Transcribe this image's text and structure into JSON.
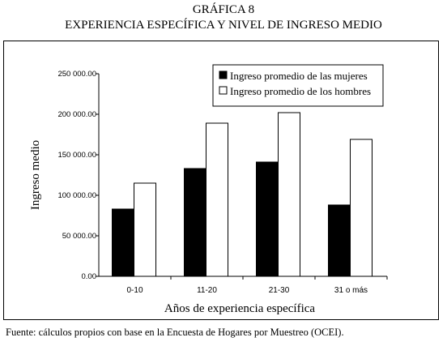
{
  "figure": {
    "title_line1": "GRÁFICA 8",
    "title_line2": "EXPERIENCIA ESPECÍFICA Y NIVEL DE INGRESO MEDIO",
    "source": "Fuente: cálculos propios con base en la Encuesta de Hogares por Muestreo (OCEI)."
  },
  "chart_data": {
    "type": "bar",
    "categories": [
      "0-10",
      "11-20",
      "21-30",
      "31 o más"
    ],
    "series": [
      {
        "name": "Ingreso promedio de las mujeres",
        "values": [
          83000,
          133000,
          141000,
          88000
        ],
        "color": "#000000"
      },
      {
        "name": "Ingreso promedio de los hombres",
        "values": [
          115000,
          189000,
          202000,
          169000
        ],
        "color": "#ffffff"
      }
    ],
    "ylabel": "Ingreso medio",
    "xlabel": "Años de experiencia específica",
    "ylim": [
      0,
      250000
    ],
    "yticks": [
      0,
      50000,
      100000,
      150000,
      200000,
      250000
    ],
    "ytick_labels": [
      "0.00",
      "50 000.00",
      "100 000.00",
      "150 000.00",
      "200 000.00",
      "250 000.00"
    ],
    "legend_position": "top-right",
    "grid": false
  }
}
